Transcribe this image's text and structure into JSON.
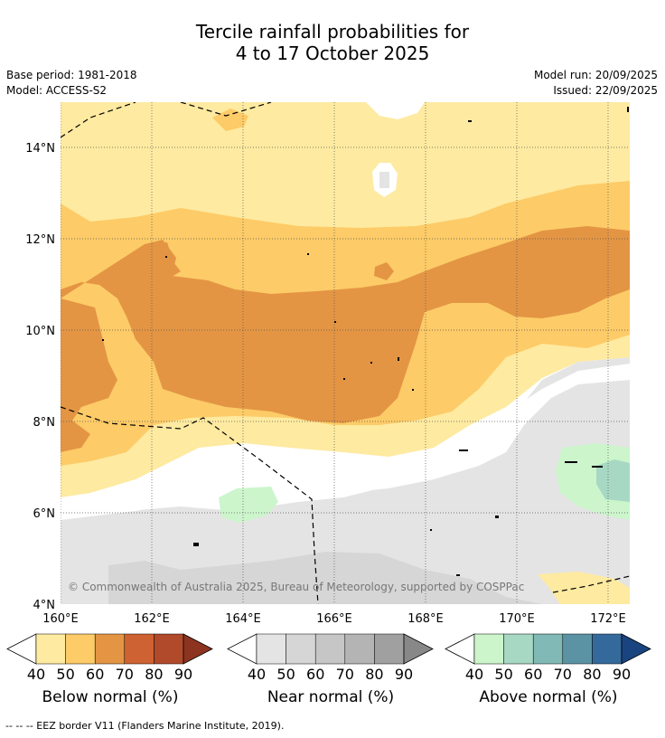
{
  "title_line1": "Tercile rainfall probabilities for",
  "title_line2": "4 to 17 October 2025",
  "base_period": "Base period: 1981-2018",
  "model": "Model: ACCESS-S2",
  "model_run": "Model run: 20/09/2025",
  "issued": "Issued: 22/09/2025",
  "copyright": "© Commonwealth of Australia 2025, Bureau of Meteorology, supported by COSPPac",
  "lat_ticks": [
    "14°N",
    "12°N",
    "10°N",
    "8°N",
    "6°N",
    "4°N"
  ],
  "lon_ticks": [
    "160°E",
    "162°E",
    "164°E",
    "166°E",
    "168°E",
    "170°E",
    "172°E"
  ],
  "colorbars": [
    {
      "label": "Below normal (%)",
      "ticks": [
        "40",
        "50",
        "60",
        "70",
        "80",
        "90"
      ],
      "colors": [
        "#feeaa0",
        "#fdcb67",
        "#e39544",
        "#cf6232",
        "#b14a2a",
        "#8c3420"
      ]
    },
    {
      "label": "Near normal (%)",
      "ticks": [
        "40",
        "50",
        "60",
        "70",
        "80",
        "90"
      ],
      "colors": [
        "#e4e4e4",
        "#d6d6d6",
        "#c6c6c6",
        "#b4b4b4",
        "#a0a0a0",
        "#888888"
      ]
    },
    {
      "label": "Above normal (%)",
      "ticks": [
        "40",
        "50",
        "60",
        "70",
        "80",
        "90"
      ],
      "colors": [
        "#ccf5cc",
        "#a7d8c3",
        "#80b9b5",
        "#5b93a4",
        "#336a9b",
        "#1a4480"
      ]
    }
  ],
  "footer": "--  --  -- EEZ border V11 (Flanders Marine Institute, 2019)."
}
